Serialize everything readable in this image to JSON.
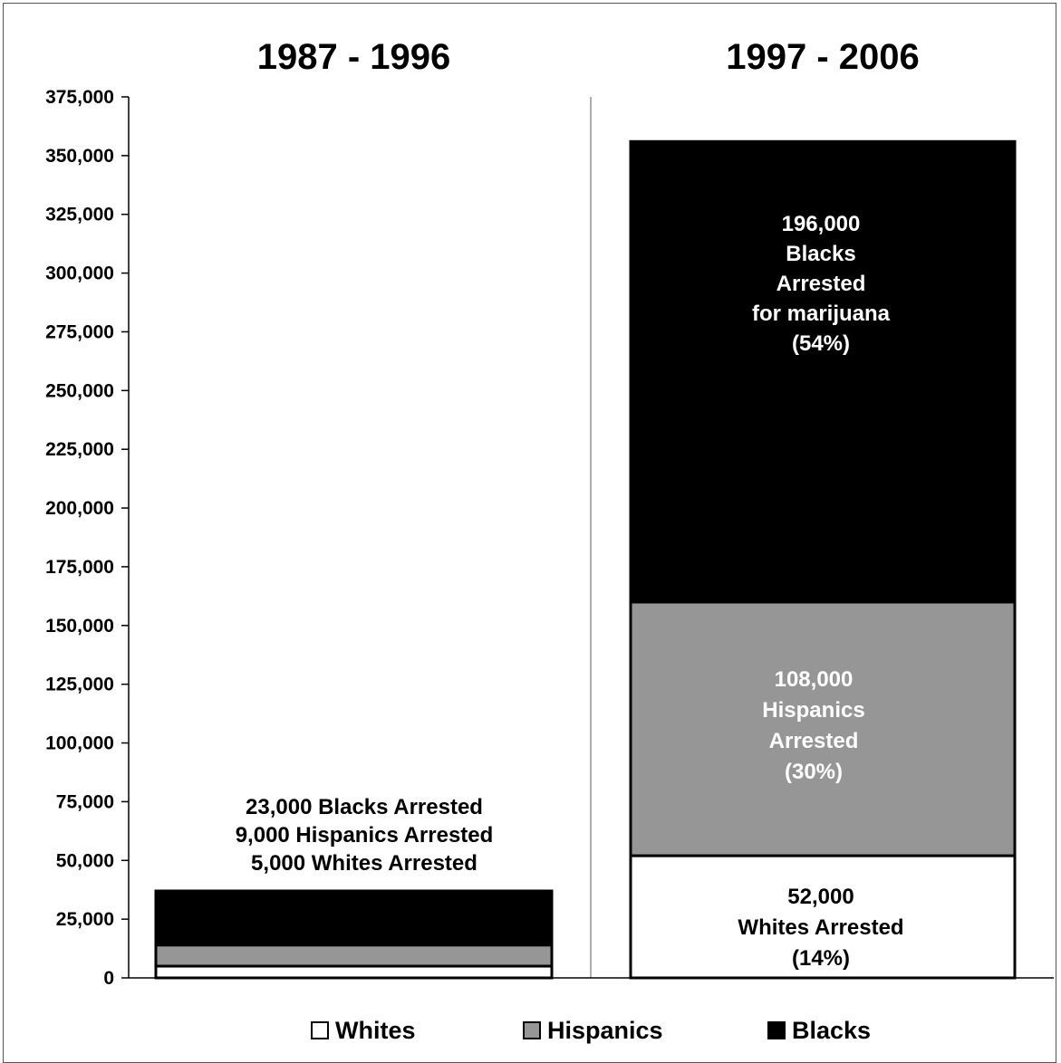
{
  "chart_data": {
    "type": "bar",
    "stacked": true,
    "categories": [
      "1987 - 1996",
      "1997 - 2006"
    ],
    "series": [
      {
        "name": "Whites",
        "values": [
          5000,
          52000
        ],
        "color": "#ffffff"
      },
      {
        "name": "Hispanics",
        "values": [
          9000,
          108000
        ],
        "color": "#969696"
      },
      {
        "name": "Blacks",
        "values": [
          23000,
          196000
        ],
        "color": "#000000"
      }
    ],
    "ylim": [
      0,
      375000
    ],
    "yticks": [
      0,
      25000,
      50000,
      75000,
      100000,
      125000,
      150000,
      175000,
      200000,
      225000,
      250000,
      275000,
      300000,
      325000,
      350000,
      375000
    ],
    "ytick_labels": [
      "0",
      "25,000",
      "50,000",
      "75,000",
      "100,000",
      "125,000",
      "150,000",
      "175,000",
      "200,000",
      "225,000",
      "250,000",
      "275,000",
      "300,000",
      "325,000",
      "350,000",
      "375,000"
    ],
    "grid": false,
    "legend": "bottom",
    "annotations": {
      "period1": [
        "23,000 Blacks Arrested",
        "9,000 Hispanics Arrested",
        "5,000 Whites Arrested"
      ],
      "period2_blacks": [
        "196,000",
        "Blacks",
        "Arrested",
        "for marijuana",
        "(54%)"
      ],
      "period2_hispanics": [
        "108,000",
        "Hispanics",
        "Arrested",
        "(30%)"
      ],
      "period2_whites": [
        "52,000",
        "Whites Arrested",
        "(14%)"
      ]
    }
  }
}
